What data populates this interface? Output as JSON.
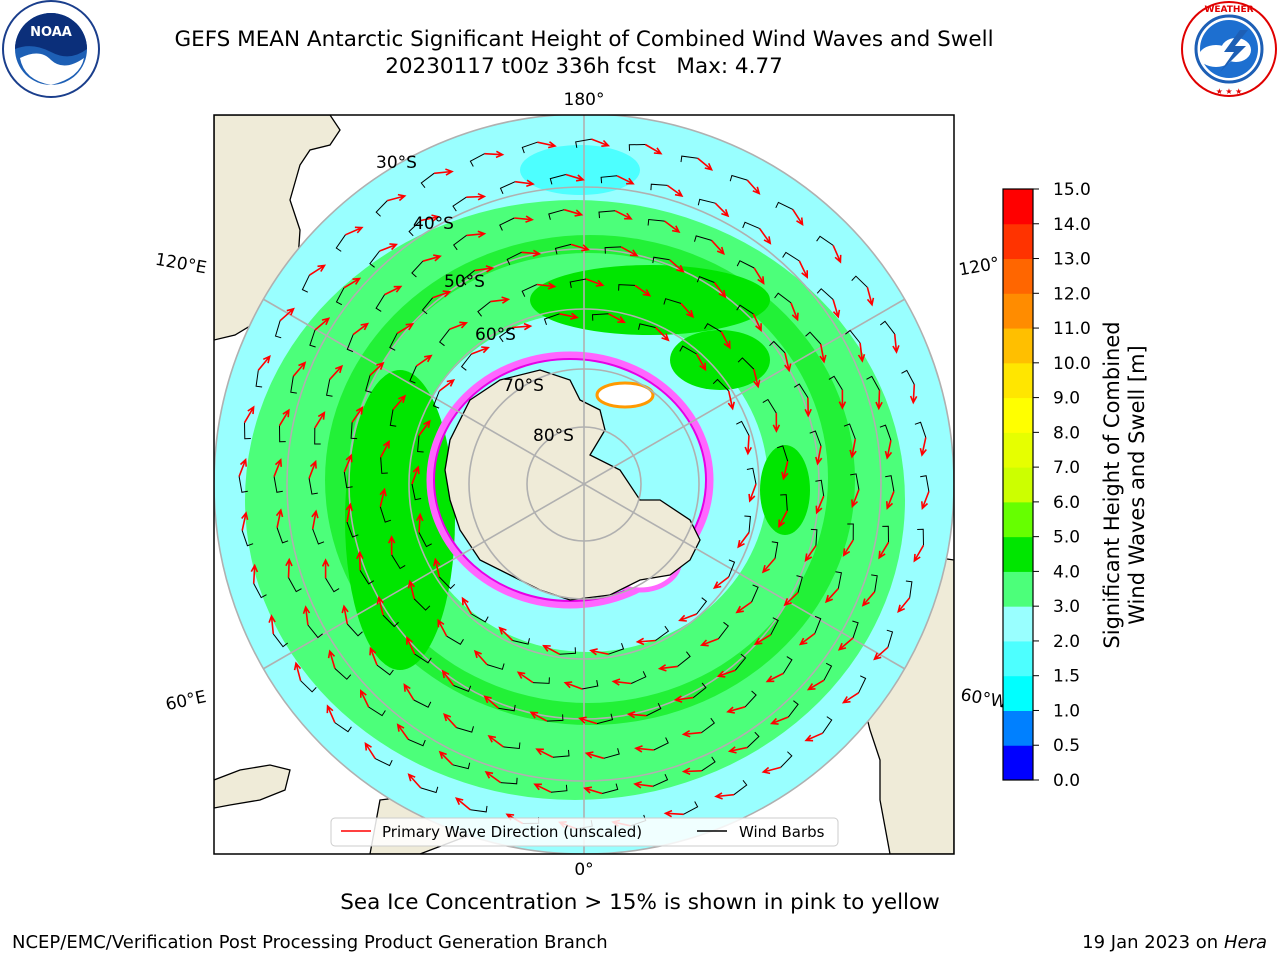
{
  "title": {
    "line1": "GEFS MEAN Antarctic Significant Height of Combined Wind Waves and Swell",
    "line2": "20230117 t00z 336h fcst   Max: 4.77"
  },
  "logos": {
    "noaa": {
      "text": "NOAA",
      "ring_text": "NATIONAL OCEANIC AND ATMOSPHERIC ADMINISTRATION · U.S. DEPARTMENT OF COMMERCE",
      "icon": "noaa-seagull-logo"
    },
    "nws": {
      "ring_text": "NATIONAL WEATHER SERVICE",
      "icon": "nws-lightning-cloud-logo"
    }
  },
  "map": {
    "projection": "south-polar-stereographic",
    "longitude_labels": [
      "180°",
      "120°E",
      "120°",
      "60°E",
      "60°W",
      "0°"
    ],
    "latitude_labels": [
      "30°S",
      "40°S",
      "50°S",
      "60°S",
      "70°S",
      "80°S"
    ],
    "colors": {
      "land": "#efebd8",
      "ocean_2_3m": "#99ffff",
      "ocean_3_4m": "#4cff7a",
      "ocean_4_5m": "#00e600",
      "ocean_1_5_2m": "#4dffff",
      "ice_pink": "#ff66ff",
      "ice_magenta": "#e600e6",
      "grid": "#b0b0b0",
      "wave_arrow": "#ff0000",
      "wind_barb": "#000000"
    },
    "legend": {
      "primary_wave": "Primary Wave Direction (unscaled)",
      "wind_barbs": "Wind Barbs"
    }
  },
  "colorbar": {
    "label_line1": "Significant Height of Combined",
    "label_line2": "Wind Waves and Swell [m]",
    "ticks": [
      "0.0",
      "0.5",
      "1.0",
      "1.5",
      "2.0",
      "3.0",
      "4.0",
      "5.0",
      "6.0",
      "7.0",
      "8.0",
      "9.0",
      "10.0",
      "11.0",
      "12.0",
      "13.0",
      "14.0",
      "15.0"
    ],
    "colors": [
      "#0000ff",
      "#0080ff",
      "#00ffff",
      "#4dffff",
      "#99ffff",
      "#4cff7a",
      "#00e600",
      "#66ff00",
      "#ccff00",
      "#e6ff00",
      "#ffff00",
      "#ffe600",
      "#ffbf00",
      "#ff8c00",
      "#ff6600",
      "#ff3300",
      "#ff0000"
    ]
  },
  "notes": {
    "ice": "Sea Ice Concentration > 15% is shown in pink to yellow",
    "footer_left": "NCEP/EMC/Verification Post Processing Product Generation Branch",
    "footer_right_prefix": "19 Jan 2023 on ",
    "footer_right_machine": "Hera"
  }
}
